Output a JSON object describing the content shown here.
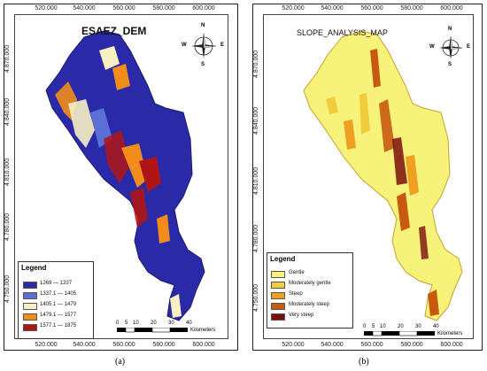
{
  "left_map": {
    "title": "ESAEZ_DEM",
    "x_ticks": [
      "520.000",
      "540.000",
      "560.000",
      "580.000",
      "600.000"
    ],
    "y_ticks": [
      "4.870.000",
      "4.840.000",
      "4.810.000",
      "4.780.000",
      "4.750.000"
    ],
    "legend_title": "Legend",
    "legend": [
      {
        "label": "1269 — 1337",
        "color": "#2a2aa8"
      },
      {
        "label": "1337.1 — 1405",
        "color": "#5b6fd6"
      },
      {
        "label": "1405.1 — 1479",
        "color": "#f6f0c2"
      },
      {
        "label": "1479.1 — 1577",
        "color": "#f28c1a"
      },
      {
        "label": "1577.1 — 1875",
        "color": "#b01515"
      }
    ],
    "scale_numbers": [
      "0",
      "5",
      "10",
      "20",
      "30",
      "40"
    ],
    "scale_unit": "Kilometers",
    "caption": "(a)"
  },
  "right_map": {
    "title": "SLOPE_ANALYSIS_MAP",
    "x_ticks": [
      "520.000",
      "540.000",
      "560.000",
      "580.000",
      "600.000"
    ],
    "y_ticks": [
      "4.870.000",
      "4.840.000",
      "4.810.000",
      "4.780.000",
      "4.750.000"
    ],
    "legend_title": "Legend",
    "legend": [
      {
        "label": "Gentle",
        "color": "#f7f27a"
      },
      {
        "label": "Moderately gentle",
        "color": "#f2cc3a"
      },
      {
        "label": "Steep",
        "color": "#f0a020"
      },
      {
        "label": "Moderately steep",
        "color": "#c85a10"
      },
      {
        "label": "Very steep",
        "color": "#7a0e0e"
      }
    ],
    "scale_numbers": [
      "0",
      "5",
      "10",
      "20",
      "30",
      "40"
    ],
    "scale_unit": "Kilometers",
    "caption": "(b)"
  },
  "compass": {
    "n": "N",
    "s": "S",
    "e": "E",
    "w": "W"
  }
}
